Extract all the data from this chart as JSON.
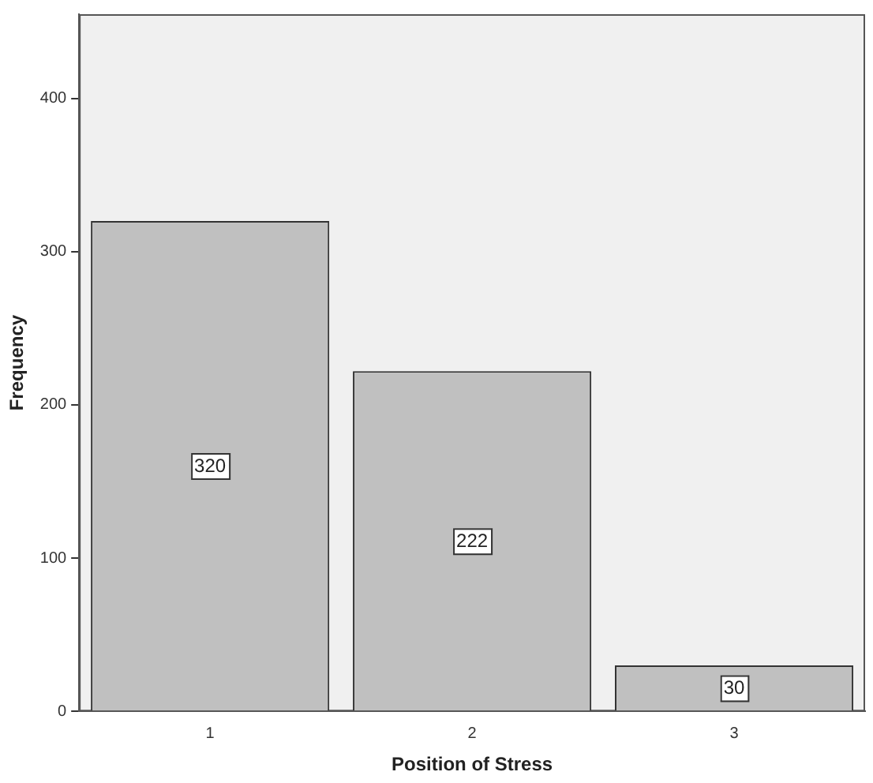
{
  "chart_data": {
    "type": "bar",
    "xlabel": "Position of Stress",
    "ylabel": "Frequency",
    "categories": [
      "1",
      "2",
      "3"
    ],
    "values": [
      320,
      222,
      30
    ],
    "color": "#c0c0c0",
    "ylim": [
      0,
      455
    ],
    "yticks": [
      0,
      100,
      200,
      300,
      400
    ],
    "grid": false,
    "legend": false,
    "data_labels": true
  }
}
